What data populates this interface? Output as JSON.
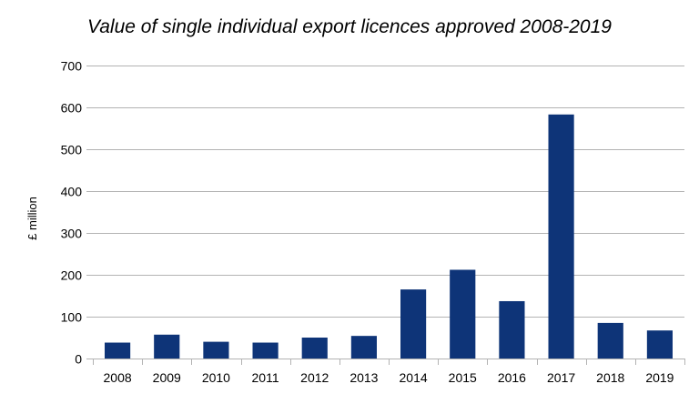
{
  "chart_data": {
    "type": "bar",
    "title": "Value of single individual export licences approved 2008-2019",
    "xlabel": "",
    "ylabel": "£ million",
    "categories": [
      "2008",
      "2009",
      "2010",
      "2011",
      "2012",
      "2013",
      "2014",
      "2015",
      "2016",
      "2017",
      "2018",
      "2019"
    ],
    "values": [
      38,
      57,
      40,
      38,
      50,
      54,
      165,
      212,
      137,
      583,
      85,
      67
    ],
    "ylim": [
      0,
      700
    ],
    "yticks": [
      "0",
      "100",
      "200",
      "300",
      "400",
      "500",
      "600",
      "700"
    ],
    "grid": true,
    "legend": "none",
    "bar_color": "#0e3478",
    "grid_color": "#b3b3b3",
    "axis_color": "#b3b3b3"
  }
}
